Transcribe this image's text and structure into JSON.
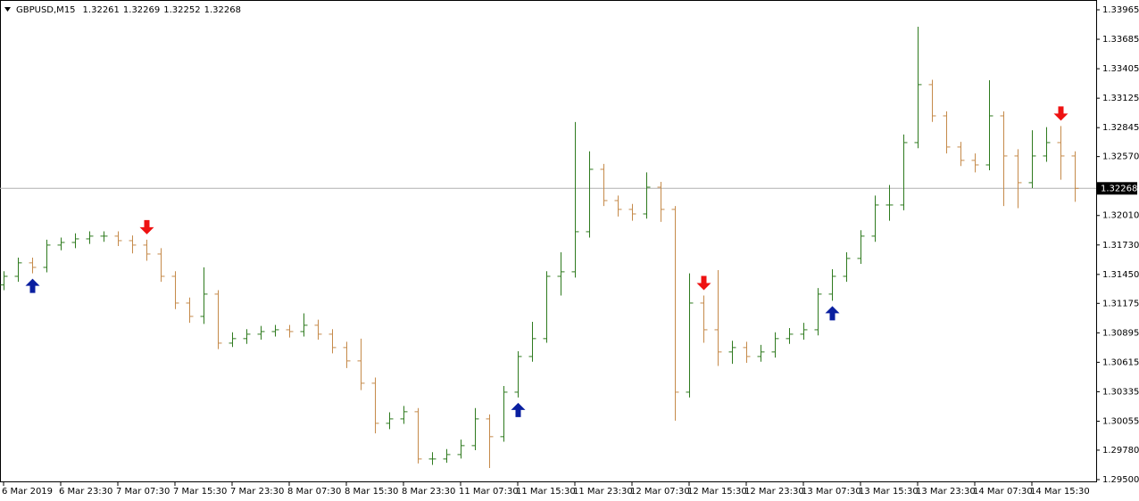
{
  "chart_data": {
    "type": "ohlc",
    "symbol": "GBPUSD,M15",
    "header_prices": [
      1.32261,
      1.32269,
      1.32252,
      1.32268
    ],
    "current_price": 1.32268,
    "up_color": "#2e7a1e",
    "down_color": "#c58a4a",
    "buy_color": "#0a1fa0",
    "sell_color": "#ee1111",
    "categories": [
      "6 Mar 2019",
      null,
      null,
      null,
      "6 Mar 23:30",
      null,
      null,
      null,
      "7 Mar 07:30",
      null,
      null,
      null,
      "7 Mar 15:30",
      null,
      null,
      null,
      "7 Mar 23:30",
      null,
      null,
      null,
      "8 Mar 07:30",
      null,
      null,
      null,
      "8 Mar 15:30",
      null,
      null,
      null,
      "8 Mar 23:30",
      null,
      null,
      null,
      "11 Mar 07:30",
      null,
      null,
      null,
      "11 Mar 15:30",
      null,
      null,
      null,
      "11 Mar 23:30",
      null,
      null,
      null,
      "12 Mar 07:30",
      null,
      null,
      null,
      "12 Mar 15:30",
      null,
      null,
      null,
      "12 Mar 23:30",
      null,
      null,
      null,
      "13 Mar 07:30",
      null,
      null,
      null,
      "13 Mar 15:30",
      null,
      null,
      null,
      "13 Mar 23:30",
      null,
      null,
      null,
      "14 Mar 07:30",
      null,
      null,
      null,
      "14 Mar 15:30",
      null,
      null,
      null
    ],
    "open": [
      1.3135,
      1.31432,
      1.3156,
      1.31517,
      1.31729,
      1.31754,
      1.31788,
      1.31814,
      1.31814,
      1.31771,
      1.31729,
      1.31644,
      1.31432,
      1.31178,
      1.31051,
      1.31263,
      1.30797,
      1.3084,
      1.30882,
      1.30907,
      1.30924,
      1.30907,
      1.30967,
      1.30882,
      1.30755,
      1.30628,
      1.30416,
      1.30035,
      1.30077,
      1.30145,
      1.29696,
      1.29696,
      1.29738,
      1.29823,
      1.30077,
      1.29908,
      1.30331,
      1.3067,
      1.3084,
      1.31432,
      1.31475,
      1.31856,
      1.32449,
      1.32152,
      1.32068,
      1.32025,
      1.32279,
      1.32068,
      1.30331,
      1.31178,
      1.30924,
      1.30713,
      1.30755,
      1.3067,
      1.30713,
      1.3084,
      1.30882,
      1.30924,
      1.31263,
      1.31432,
      1.31602,
      1.31814,
      1.3211,
      1.3211,
      1.32703,
      1.33254,
      1.32957,
      1.32661,
      1.32534,
      1.32491,
      1.32957,
      1.32576,
      1.32322,
      1.32576,
      1.32703,
      1.32576
    ],
    "high": [
      1.3148,
      1.3161,
      1.3161,
      1.3178,
      1.318,
      1.3184,
      1.3186,
      1.3186,
      1.3186,
      1.3182,
      1.3178,
      1.317,
      1.3148,
      1.3123,
      1.31517,
      1.313,
      1.309,
      1.3093,
      1.3096,
      1.3097,
      1.3097,
      1.3108,
      1.3102,
      1.3093,
      1.3081,
      1.3084,
      1.3047,
      1.3014,
      1.302,
      1.3018,
      1.2976,
      1.2979,
      1.2988,
      1.3018,
      1.3012,
      1.3039,
      1.3072,
      1.31,
      1.3148,
      1.3166,
      1.32898,
      1.3262,
      1.325,
      1.322,
      1.3212,
      1.3242,
      1.3233,
      1.321,
      1.3146,
      1.3125,
      1.31491,
      1.3082,
      1.3081,
      1.3078,
      1.309,
      1.3094,
      1.3099,
      1.3132,
      1.315,
      1.3166,
      1.3187,
      1.322,
      1.323,
      1.3278,
      1.33804,
      1.333,
      1.33,
      1.3271,
      1.326,
      1.33296,
      1.33,
      1.3264,
      1.3282,
      1.3285,
      1.3286,
      1.3262
    ],
    "low": [
      1.313,
      1.3138,
      1.3146,
      1.3147,
      1.3168,
      1.317,
      1.3174,
      1.3176,
      1.3172,
      1.3165,
      1.3158,
      1.3138,
      1.3112,
      1.3099,
      1.3098,
      1.3074,
      1.3076,
      1.3079,
      1.3083,
      1.3086,
      1.3085,
      1.3086,
      1.3083,
      1.307,
      1.3056,
      1.3035,
      1.2994,
      1.2998,
      1.3003,
      1.29654,
      1.2964,
      1.2966,
      1.297,
      1.2978,
      1.2961,
      1.2986,
      1.3028,
      1.3062,
      1.308,
      1.3125,
      1.3142,
      1.318,
      1.321,
      1.32,
      1.3196,
      1.3198,
      1.3195,
      1.3006,
      1.3028,
      1.308,
      1.3058,
      1.306,
      1.3061,
      1.3062,
      1.3066,
      1.3079,
      1.3083,
      1.3087,
      1.312,
      1.3138,
      1.3155,
      1.3176,
      1.3196,
      1.3206,
      1.3265,
      1.329,
      1.326,
      1.3248,
      1.3242,
      1.3244,
      1.321,
      1.3208,
      1.3227,
      1.3252,
      1.3235,
      1.3214
    ],
    "close": [
      1.31432,
      1.3156,
      1.31517,
      1.31729,
      1.31754,
      1.31788,
      1.31814,
      1.31814,
      1.31771,
      1.31729,
      1.31644,
      1.31432,
      1.31178,
      1.31051,
      1.31263,
      1.30797,
      1.3084,
      1.30882,
      1.30907,
      1.30924,
      1.30907,
      1.30967,
      1.30882,
      1.30755,
      1.30628,
      1.30416,
      1.30035,
      1.30077,
      1.30145,
      1.29696,
      1.29696,
      1.29738,
      1.29823,
      1.30077,
      1.29908,
      1.30331,
      1.3067,
      1.3084,
      1.31432,
      1.31475,
      1.31856,
      1.32449,
      1.32152,
      1.32068,
      1.32025,
      1.32279,
      1.32068,
      1.30331,
      1.31178,
      1.30924,
      1.30713,
      1.30755,
      1.3067,
      1.30713,
      1.3084,
      1.30882,
      1.30924,
      1.31263,
      1.31432,
      1.31602,
      1.31814,
      1.3211,
      1.3211,
      1.32703,
      1.33254,
      1.32957,
      1.32661,
      1.32534,
      1.32491,
      1.32957,
      1.32576,
      1.32322,
      1.32576,
      1.32703,
      1.32576,
      1.32268
    ],
    "signals": [
      null,
      null,
      "buy",
      null,
      null,
      null,
      null,
      null,
      null,
      null,
      "sell",
      null,
      null,
      null,
      null,
      null,
      null,
      null,
      null,
      null,
      null,
      null,
      null,
      null,
      null,
      null,
      null,
      null,
      null,
      null,
      null,
      null,
      null,
      null,
      null,
      null,
      "buy",
      null,
      null,
      null,
      null,
      null,
      null,
      null,
      null,
      null,
      null,
      null,
      null,
      "sell",
      null,
      null,
      null,
      null,
      null,
      null,
      null,
      null,
      "buy",
      null,
      null,
      null,
      null,
      null,
      null,
      null,
      null,
      null,
      null,
      null,
      null,
      null,
      null,
      null,
      "sell",
      null
    ],
    "ylim": [
      1.295,
      1.33965
    ],
    "yticks": [
      1.33965,
      1.33685,
      1.33405,
      1.33125,
      1.32845,
      {
        "value": 1.3257,
        "label": "1.32570"
      },
      {
        "value": 1.3201,
        "label": "1.32010"
      },
      {
        "value": 1.3173,
        "label": "1.31730"
      },
      {
        "value": 1.3145,
        "label": "1.31450"
      },
      1.31175,
      1.30895,
      1.30615,
      1.30335,
      1.30055,
      {
        "value": 1.2978,
        "label": "1.29780"
      },
      {
        "value": 1.295,
        "label": "1.29500"
      }
    ]
  }
}
